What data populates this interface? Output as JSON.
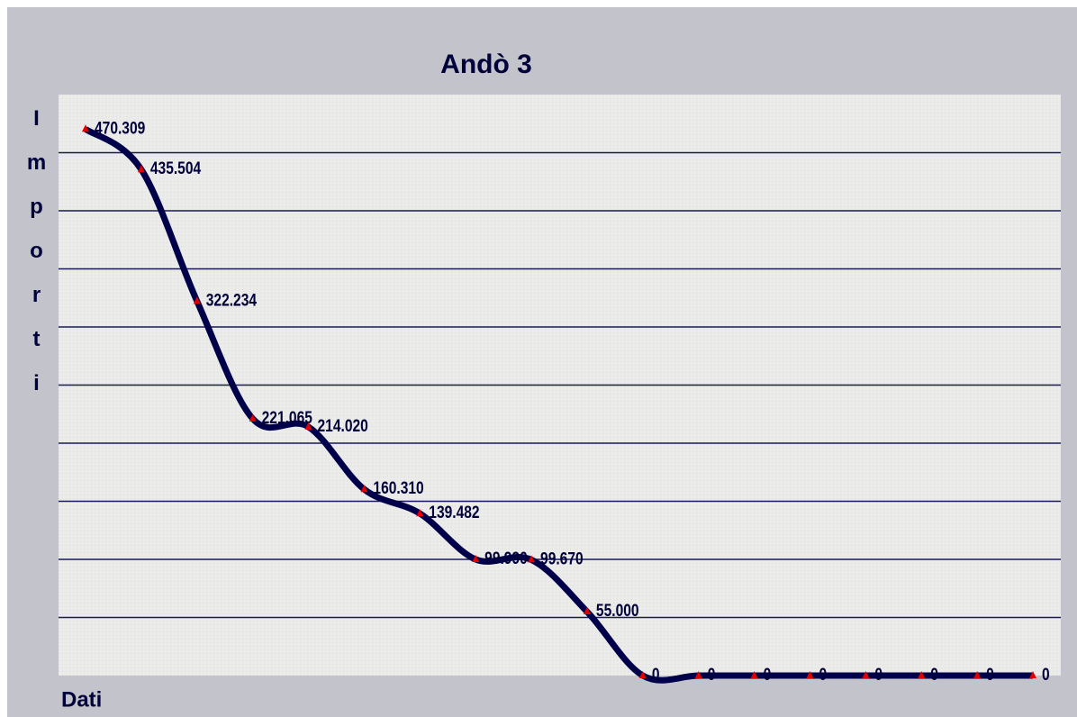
{
  "chart_data": {
    "type": "line",
    "title": "Andò 3",
    "y_label": "Importi",
    "x_label": "Dati",
    "categories": [
      null,
      null,
      null,
      null,
      null,
      null,
      null,
      null,
      null,
      null,
      null,
      null,
      null,
      null,
      null,
      null,
      null,
      null
    ],
    "series": [
      {
        "color": "#00004a",
        "marker_color": "#e00000",
        "values": [
          470309,
          435504,
          322234,
          221065,
          214020,
          160310,
          139482,
          99990,
          99670,
          55000,
          0,
          0,
          0,
          0,
          0,
          0,
          0,
          0
        ],
        "value_labels": [
          "470.309",
          "435.504",
          "322.234",
          "221.065",
          "214.020",
          "160.310",
          "139.482",
          "99.990",
          "99.670",
          "55.000",
          "0",
          "0",
          "0",
          "0",
          "0",
          "0",
          "0",
          "0"
        ]
      }
    ],
    "ylim": [
      0,
      500000
    ],
    "yticks": [
      50000,
      100000,
      150000,
      200000,
      250000,
      300000,
      350000,
      400000,
      450000
    ],
    "grid": true
  }
}
